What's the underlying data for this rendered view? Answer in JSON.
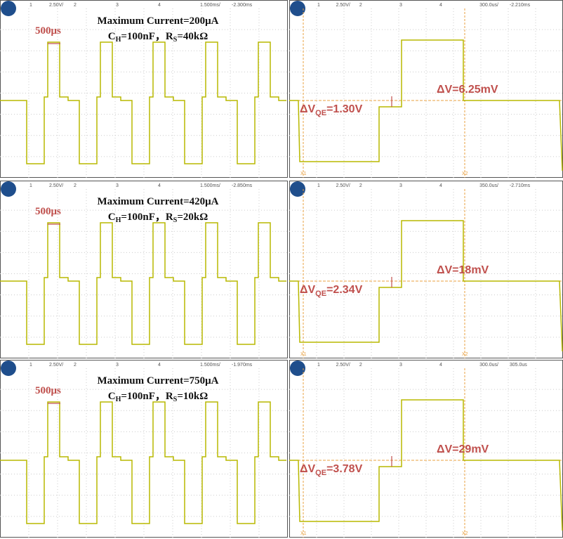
{
  "panels": [
    {
      "header": [
        "1",
        "2.50V/",
        "2",
        "3",
        "4",
        "1.500ms/",
        "-2.300ms"
      ],
      "title": "Maximum Current=200μA",
      "params": [
        "C",
        "H",
        "=100nF，R",
        "S",
        "=40kΩ"
      ],
      "marker": "500μs"
    },
    {
      "header": [
        "1",
        "2.50V/",
        "2",
        "3",
        "4",
        "300.0us/",
        "-2.210ms"
      ],
      "delta_v": "ΔV=6.25mV",
      "delta_vqe": [
        "ΔV",
        "QE",
        "=1.30V"
      ],
      "cursors": [
        "X1",
        "X2"
      ]
    },
    {
      "header": [
        "1",
        "2.50V/",
        "2",
        "3",
        "4",
        "1.500ms/",
        "-2.850ms"
      ],
      "title": "Maximum Current=420μA",
      "params": [
        "C",
        "H",
        "=100nF，R",
        "S",
        "=20kΩ"
      ],
      "marker": "500μs"
    },
    {
      "header": [
        "1",
        "2.50V/",
        "2",
        "3",
        "4",
        "350.0us/",
        "-2.710ms"
      ],
      "delta_v": "ΔV=18mV",
      "delta_vqe": [
        "ΔV",
        "QE",
        "=2.34V"
      ],
      "cursors": [
        "X1",
        "X2"
      ]
    },
    {
      "header": [
        "1",
        "2.50V/",
        "2",
        "3",
        "4",
        "1.500ms/",
        "-1.970ms"
      ],
      "title": "Maximum Current=750μA",
      "params": [
        "C",
        "H",
        "=100nF，R",
        "S",
        "=10kΩ"
      ],
      "marker": "500μs"
    },
    {
      "header": [
        "1",
        "2.50V/",
        "2",
        "3",
        "4",
        "300.0us/",
        "305.0us"
      ],
      "delta_v": "ΔV=29mV",
      "delta_vqe": [
        "ΔV",
        "QE",
        "=3.78V"
      ],
      "cursors": [
        "X1",
        "X2"
      ]
    }
  ]
}
